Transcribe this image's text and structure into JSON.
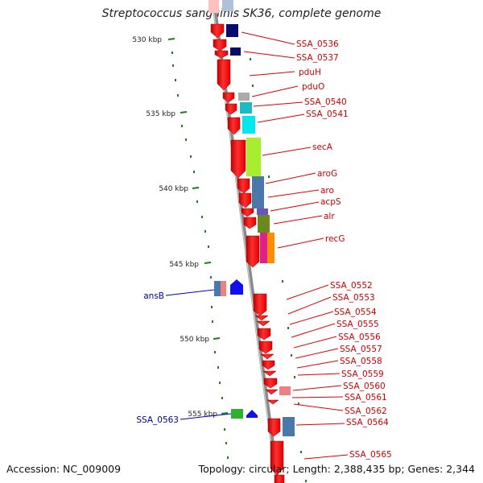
{
  "title": "Streptococcus sanguinis SK36, complete genome",
  "footer": {
    "accession": "Accession: NC_009009",
    "topology": "Topology: circular; Length: 2,388,435 bp; Genes: 2,344"
  },
  "scale": {
    "ticks": [
      "530 kbp",
      "535 kbp",
      "540 kbp",
      "545 kbp",
      "550 kbp",
      "555 kbp"
    ]
  },
  "colors": {
    "backbone": "#8c8c8c",
    "cds": "#ff1010",
    "tick": "#1e7d1e",
    "label_red": "#cc0000",
    "label_blue": "#0000aa"
  },
  "labels": {
    "right": [
      "SSA_0536",
      "SSA_0537",
      "pduH",
      "pduO",
      "SSA_0540",
      "SSA_0541",
      "secA",
      "aroG",
      "aro",
      "acpS",
      "alr",
      "recG",
      "SSA_0552",
      "SSA_0553",
      "SSA_0554",
      "SSA_0555",
      "SSA_0556",
      "SSA_0557",
      "SSA_0558",
      "SSA_0559",
      "SSA_0560",
      "SSA_0561",
      "SSA_0562",
      "SSA_0564",
      "SSA_0565"
    ],
    "left": [
      "ansB",
      "SSA_0563"
    ]
  }
}
